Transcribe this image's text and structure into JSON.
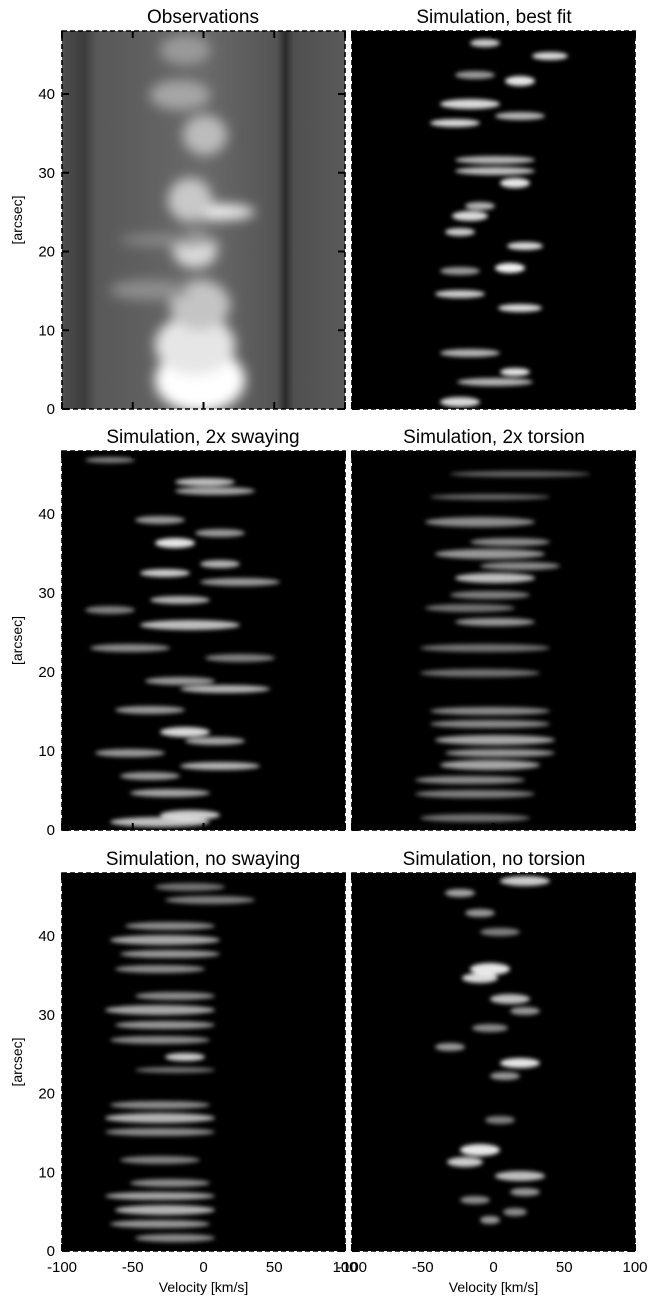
{
  "figure": {
    "type": "heatmap-grid",
    "x_axis": {
      "label": "Velocity [km/s]",
      "range": [
        -100,
        100
      ],
      "ticks": [
        -100,
        -50,
        0,
        50,
        100
      ]
    },
    "y_axis": {
      "label": "[arcsec]",
      "range": [
        0,
        48
      ],
      "ticks": [
        0,
        10,
        20,
        30,
        40
      ]
    },
    "colormap": "grayscale",
    "background": "#000000"
  },
  "chart_data": [
    {
      "type": "heatmap",
      "title": "Observations"
    },
    {
      "type": "heatmap",
      "title": "Simulation, best fit"
    },
    {
      "type": "heatmap",
      "title": "Simulation, 2x swaying"
    },
    {
      "type": "heatmap",
      "title": "Simulation, 2x torsion"
    },
    {
      "type": "heatmap",
      "title": "Simulation, no swaying"
    },
    {
      "type": "heatmap",
      "title": "Simulation, no torsion"
    }
  ]
}
